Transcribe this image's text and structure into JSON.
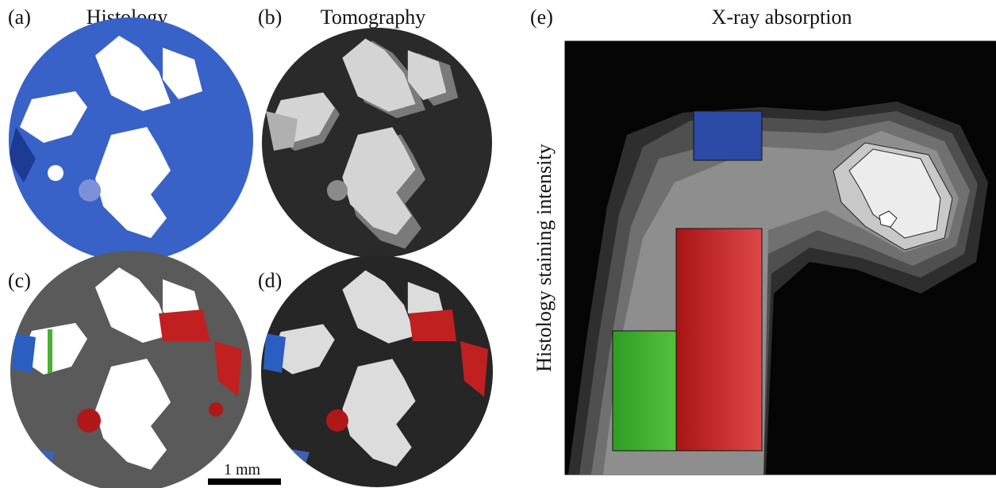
{
  "panels": [
    {
      "label": "(a)",
      "title": "Histology"
    },
    {
      "label": "(b)",
      "title": "Tomography"
    },
    {
      "label": "(c)"
    },
    {
      "label": "(d)"
    },
    {
      "label": "(e)",
      "title": "X-ray absorption",
      "y_axis_label": "Histology staining intensity"
    }
  ],
  "scale_bar": "1 mm"
}
